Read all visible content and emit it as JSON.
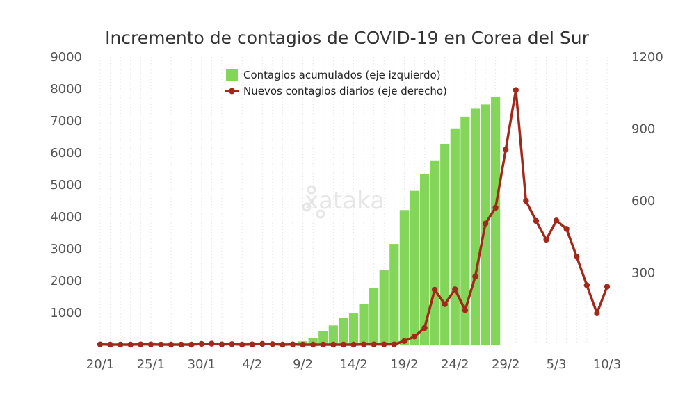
{
  "chart_data": {
    "type": "bar+line",
    "title": "Incremento de contagios de COVID-19 en Corea del Sur",
    "x_tick_labels": [
      "20/1",
      "25/1",
      "30/1",
      "4/2",
      "9/2",
      "14/2",
      "19/2",
      "24/2",
      "29/2",
      "5/3",
      "10/3"
    ],
    "y_left_ticks": [
      1000,
      2000,
      3000,
      4000,
      5000,
      6000,
      7000,
      8000,
      9000
    ],
    "y_right_ticks": [
      300,
      600,
      900,
      1200
    ],
    "ylim_left": [
      0,
      9000
    ],
    "ylim_right": [
      0,
      1200
    ],
    "legend_position": "top-center",
    "grid": "vertical-dotted",
    "series": [
      {
        "name": "Contagios acumulados (eje izquierdo)",
        "type": "bar",
        "axis": "left",
        "color": "#84d65a",
        "x_start": 19,
        "values": [
          8,
          104,
          204,
          433,
          602,
          833,
          977,
          1261,
          1766,
          2337,
          3150,
          4212,
          4812,
          5328,
          5766,
          6284,
          6767,
          7134,
          7382,
          7513,
          7755
        ]
      },
      {
        "name": "Nuevos contagios diarios (eje derecho)",
        "type": "line",
        "axis": "right",
        "color": "#a3281c",
        "x_start": 0,
        "values": [
          1,
          0,
          0,
          0,
          1,
          1,
          0,
          0,
          0,
          0,
          3,
          4,
          1,
          2,
          0,
          1,
          3,
          2,
          0,
          1,
          0,
          0,
          0,
          0,
          0,
          0,
          1,
          1,
          1,
          1,
          15,
          34,
          70,
          229,
          169,
          231,
          144,
          284,
          505,
          571,
          813,
          1062,
          600,
          516,
          438,
          518,
          483,
          367,
          248,
          131,
          242
        ]
      }
    ]
  },
  "watermark": {
    "text": "xataka"
  }
}
